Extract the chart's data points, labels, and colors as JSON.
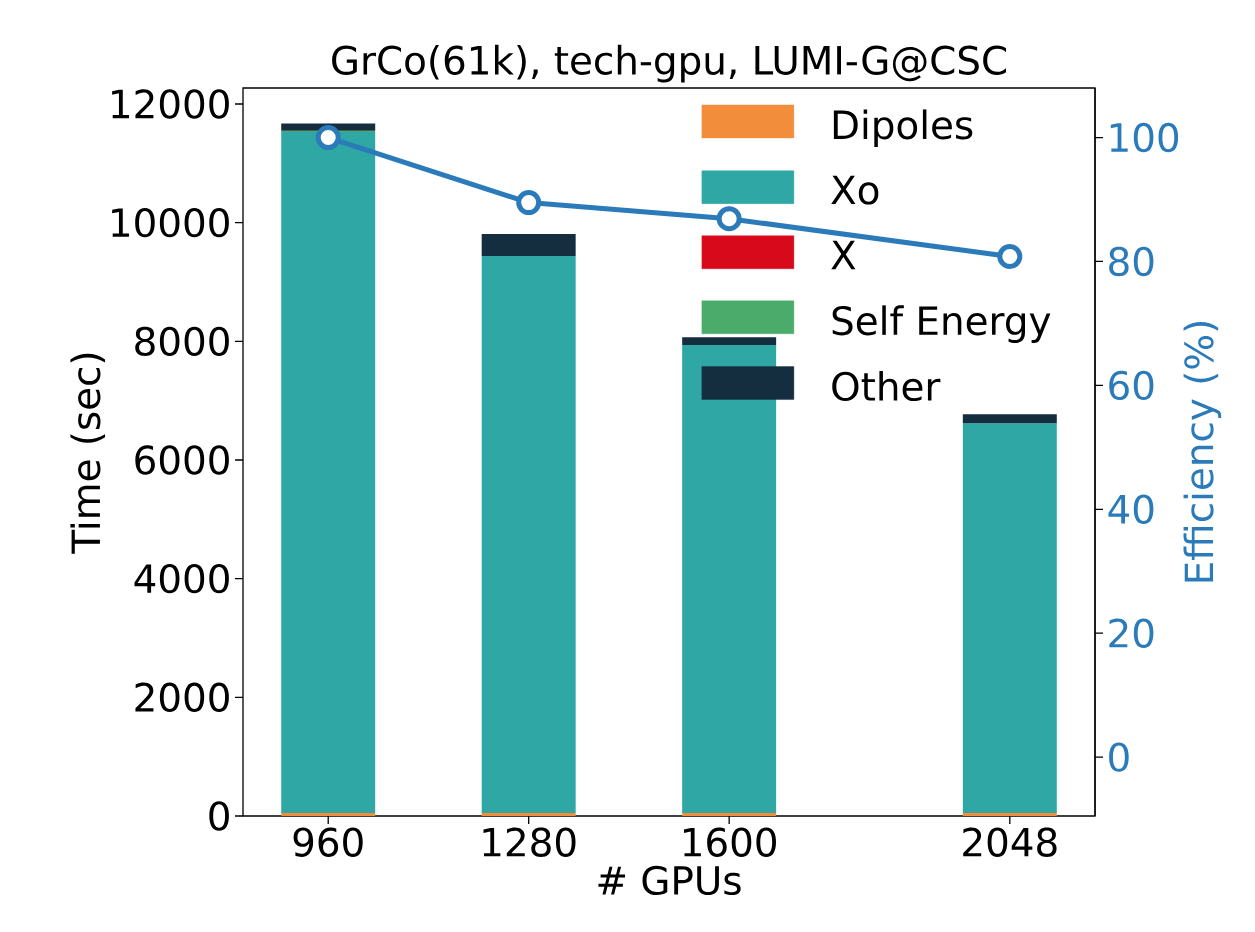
{
  "chart_data": {
    "type": "bar",
    "title": "GrCo(61k), tech-gpu, LUMI-G@CSC",
    "xlabel": "# GPUs",
    "ylabel": "Time (sec)",
    "y2label": "Efficiency (%)",
    "x": [
      960,
      1280,
      1600,
      2048
    ],
    "stacked": true,
    "series": [
      {
        "name": "Dipoles",
        "color": "#f28e3b",
        "values": [
          50,
          50,
          50,
          50
        ]
      },
      {
        "name": "Xo",
        "color": "#2ea7a5",
        "values": [
          11480,
          9390,
          7890,
          6570
        ]
      },
      {
        "name": "X",
        "color": "#d7091b",
        "values": [
          0,
          0,
          0,
          0
        ]
      },
      {
        "name": "Self Energy",
        "color": "#4aab6a",
        "values": [
          20,
          0,
          0,
          0
        ]
      },
      {
        "name": "Other",
        "color": "#142d3f",
        "values": [
          120,
          370,
          130,
          150
        ]
      },
      {
        "type": "line",
        "axis": "y2",
        "color": "#2b7bba",
        "marker": "circle",
        "line_style": "solid",
        "values": [
          100,
          89.5,
          86.9,
          80.8
        ]
      }
    ],
    "xlim": [
      824,
      2184
    ],
    "xticks": [
      960,
      1280,
      1600,
      2048
    ],
    "ylim": [
      0,
      12270
    ],
    "yticks": [
      0,
      2000,
      4000,
      6000,
      8000,
      10000,
      12000
    ],
    "y2lim": [
      -9.5,
      108
    ],
    "y2ticks": [
      0,
      20,
      40,
      60,
      80,
      100
    ],
    "grid": false,
    "legend": "top right"
  }
}
